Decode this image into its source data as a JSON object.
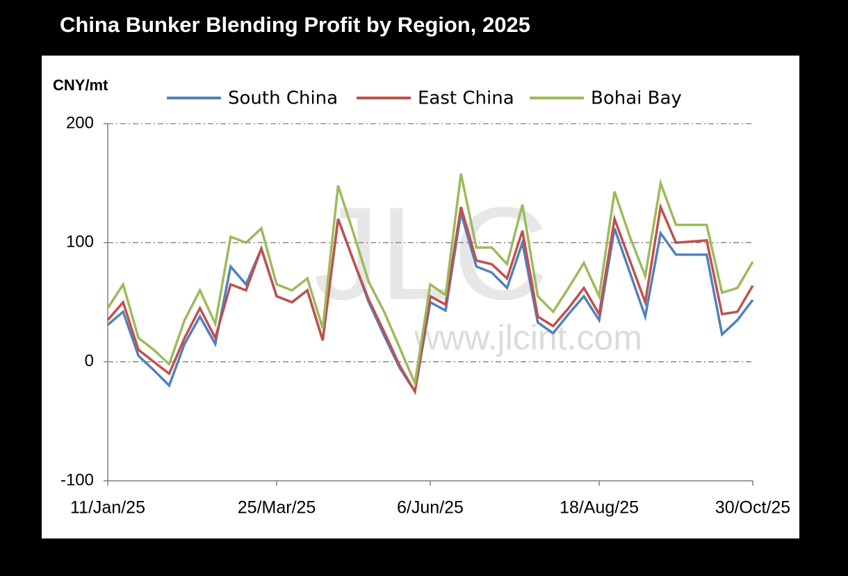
{
  "chart_data": {
    "type": "line",
    "title": "China Bunker Blending Profit by Region, 2025",
    "y_label": "CNY/mt",
    "watermark": "JLC",
    "watermark_url": "www.jlcint.com",
    "categories": [
      "11/Jan/25",
      null,
      null,
      null,
      null,
      null,
      null,
      null,
      null,
      null,
      null,
      "25/Mar/25",
      null,
      null,
      null,
      null,
      null,
      null,
      null,
      null,
      null,
      "6/Jun/25",
      null,
      null,
      null,
      null,
      null,
      null,
      null,
      null,
      null,
      null,
      "18/Aug/25",
      null,
      null,
      null,
      null,
      null,
      null,
      null,
      null,
      null,
      "30/Oct/25"
    ],
    "series": [
      {
        "name": "South China",
        "color": "#4f81bd",
        "values": [
          31,
          42,
          5,
          -7,
          -20,
          15,
          38,
          15,
          80,
          65,
          95,
          55,
          50,
          60,
          18,
          120,
          85,
          50,
          22,
          -5,
          -25,
          50,
          43,
          125,
          80,
          75,
          62,
          100,
          33,
          24,
          40,
          55,
          35,
          112,
          75,
          38,
          108,
          90,
          90,
          90,
          23,
          35,
          52
        ]
      },
      {
        "name": "East China",
        "color": "#c0504d",
        "values": [
          35,
          50,
          10,
          0,
          -10,
          20,
          45,
          20,
          65,
          60,
          95,
          55,
          50,
          60,
          18,
          120,
          85,
          52,
          25,
          -3,
          -25,
          55,
          48,
          130,
          85,
          82,
          70,
          110,
          38,
          30,
          45,
          62,
          40,
          120,
          85,
          50,
          130,
          100,
          101,
          102,
          40,
          42,
          64
        ]
      },
      {
        "name": "Bohai Bay",
        "color": "#9bbb59",
        "values": [
          45,
          65,
          20,
          10,
          -2,
          35,
          60,
          32,
          105,
          100,
          112,
          65,
          60,
          70,
          28,
          148,
          108,
          67,
          42,
          12,
          -18,
          65,
          56,
          158,
          96,
          96,
          82,
          132,
          55,
          42,
          62,
          83,
          55,
          143,
          105,
          72,
          150,
          115,
          115,
          115,
          58,
          62,
          84
        ]
      }
    ],
    "ylim": [
      -100,
      200
    ],
    "yticks": [
      -100,
      0,
      100,
      200
    ],
    "grid": true
  }
}
